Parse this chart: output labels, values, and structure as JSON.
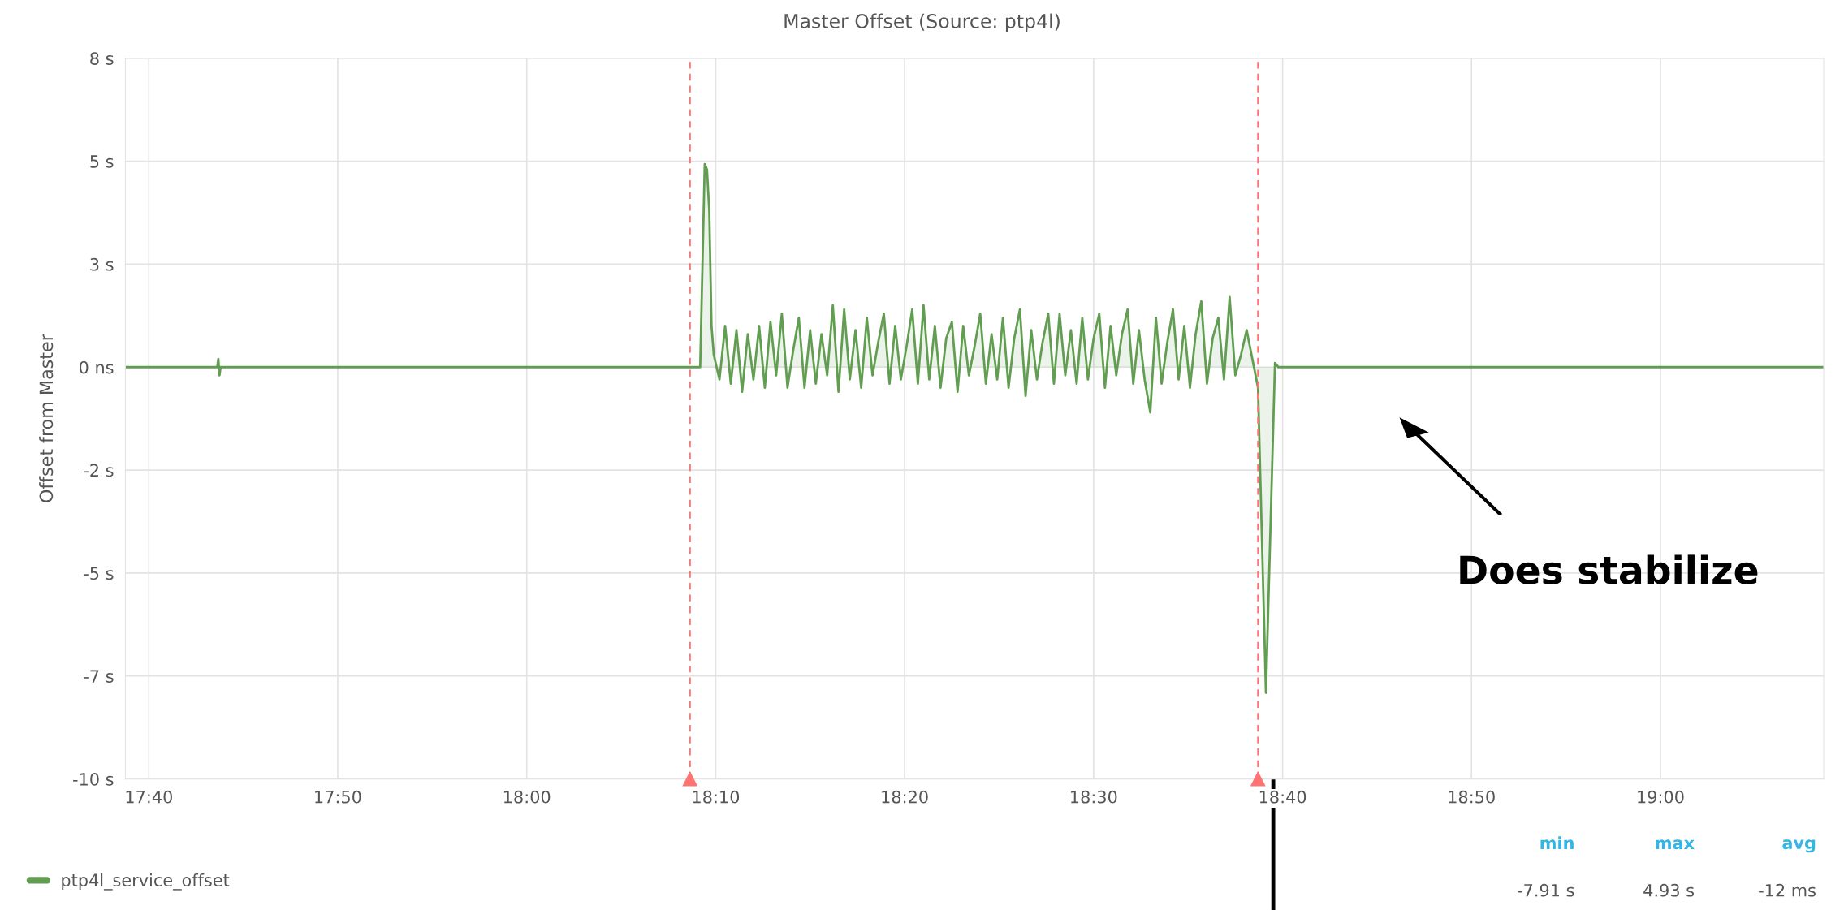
{
  "chart_data": {
    "type": "area",
    "title": "Master Offset (Source: ptp4l)",
    "ylabel": "Offset from Master",
    "series": [
      {
        "name": "ptp4l_service_offset",
        "color": "#629e51",
        "x": [
          17.646,
          17.727,
          17.728,
          17.729,
          17.73,
          18.153,
          18.157,
          18.159,
          18.161,
          18.163,
          18.165,
          18.17,
          18.175,
          18.18,
          18.185,
          18.19,
          18.195,
          18.2,
          18.205,
          18.21,
          18.215,
          18.22,
          18.225,
          18.23,
          18.235,
          18.24,
          18.245,
          18.25,
          18.255,
          18.26,
          18.265,
          18.27,
          18.275,
          18.28,
          18.285,
          18.29,
          18.295,
          18.3,
          18.305,
          18.31,
          18.315,
          18.32,
          18.325,
          18.33,
          18.335,
          18.34,
          18.345,
          18.35,
          18.355,
          18.36,
          18.365,
          18.37,
          18.375,
          18.38,
          18.385,
          18.39,
          18.395,
          18.4,
          18.405,
          18.41,
          18.415,
          18.42,
          18.425,
          18.43,
          18.435,
          18.44,
          18.445,
          18.45,
          18.455,
          18.46,
          18.465,
          18.47,
          18.475,
          18.48,
          18.485,
          18.49,
          18.495,
          18.5,
          18.505,
          18.51,
          18.515,
          18.52,
          18.525,
          18.53,
          18.535,
          18.54,
          18.545,
          18.55,
          18.555,
          18.56,
          18.565,
          18.57,
          18.575,
          18.58,
          18.585,
          18.59,
          18.595,
          18.6,
          18.605,
          18.61,
          18.615,
          18.62,
          18.625,
          18.63,
          18.635,
          18.64,
          18.645,
          18.652,
          18.66,
          18.663,
          19.144
        ],
        "values": [
          0,
          0,
          0.2,
          -0.2,
          0,
          0,
          4.93,
          4.8,
          3.8,
          1.0,
          0.3,
          -0.3,
          1.0,
          -0.4,
          0.9,
          -0.6,
          0.8,
          -0.3,
          1.0,
          -0.5,
          1.1,
          -0.2,
          1.3,
          -0.5,
          0.4,
          1.2,
          -0.5,
          0.9,
          -0.4,
          0.8,
          -0.2,
          1.5,
          -0.6,
          1.4,
          -0.3,
          0.9,
          -0.5,
          1.2,
          -0.2,
          0.6,
          1.3,
          -0.4,
          1.0,
          -0.3,
          0.5,
          1.4,
          -0.4,
          1.5,
          -0.3,
          1.0,
          -0.5,
          0.7,
          1.1,
          -0.6,
          1.0,
          -0.2,
          0.5,
          1.3,
          -0.4,
          0.8,
          -0.3,
          1.2,
          -0.5,
          0.7,
          1.4,
          -0.7,
          0.9,
          -0.3,
          0.6,
          1.3,
          -0.4,
          1.3,
          -0.2,
          0.9,
          -0.4,
          1.2,
          -0.3,
          0.7,
          1.3,
          -0.5,
          1.0,
          -0.2,
          0.8,
          1.4,
          -0.4,
          0.9,
          -0.3,
          -1.1,
          1.2,
          -0.4,
          0.6,
          1.4,
          -0.3,
          1.0,
          -0.5,
          0.8,
          1.6,
          -0.4,
          0.7,
          1.2,
          -0.3,
          1.7,
          -0.2,
          0.3,
          0.9,
          0.2,
          -0.5,
          -7.91,
          0.1,
          0,
          0
        ]
      }
    ],
    "xlim": [
      17.646,
      19.144
    ],
    "xticks": [
      {
        "value": 17.6667,
        "label": "17:40"
      },
      {
        "value": 17.8333,
        "label": "17:50"
      },
      {
        "value": 18.0,
        "label": "18:00"
      },
      {
        "value": 18.1667,
        "label": "18:10"
      },
      {
        "value": 18.3333,
        "label": "18:20"
      },
      {
        "value": 18.5,
        "label": "18:30"
      },
      {
        "value": 18.6667,
        "label": "18:40"
      },
      {
        "value": 18.8333,
        "label": "18:50"
      },
      {
        "value": 19.0,
        "label": "19:00"
      }
    ],
    "ylim": [
      -10,
      7.5
    ],
    "yticks": [
      {
        "value": -10,
        "label": "-10 s"
      },
      {
        "value": -7.5,
        "label": "-7 s"
      },
      {
        "value": -5,
        "label": "-5 s"
      },
      {
        "value": -2.5,
        "label": "-2 s"
      },
      {
        "value": 0,
        "label": "0 ns"
      },
      {
        "value": 2.5,
        "label": "3 s"
      },
      {
        "value": 5,
        "label": "5 s"
      },
      {
        "value": 7.5,
        "label": "8 s"
      }
    ],
    "ref_lines": [
      {
        "axis": "x",
        "value": 18.144,
        "color": "#ff7373",
        "line_style": "dashed"
      },
      {
        "axis": "x",
        "value": 18.645,
        "color": "#ff7373",
        "line_style": "dashed"
      }
    ],
    "annotations": [
      "Does stabilize",
      "min",
      "max",
      "avg",
      "-7.91 s",
      "4.93 s",
      "-12 ms"
    ],
    "grid": true,
    "legend": "bottom left",
    "line_style": "solid"
  }
}
